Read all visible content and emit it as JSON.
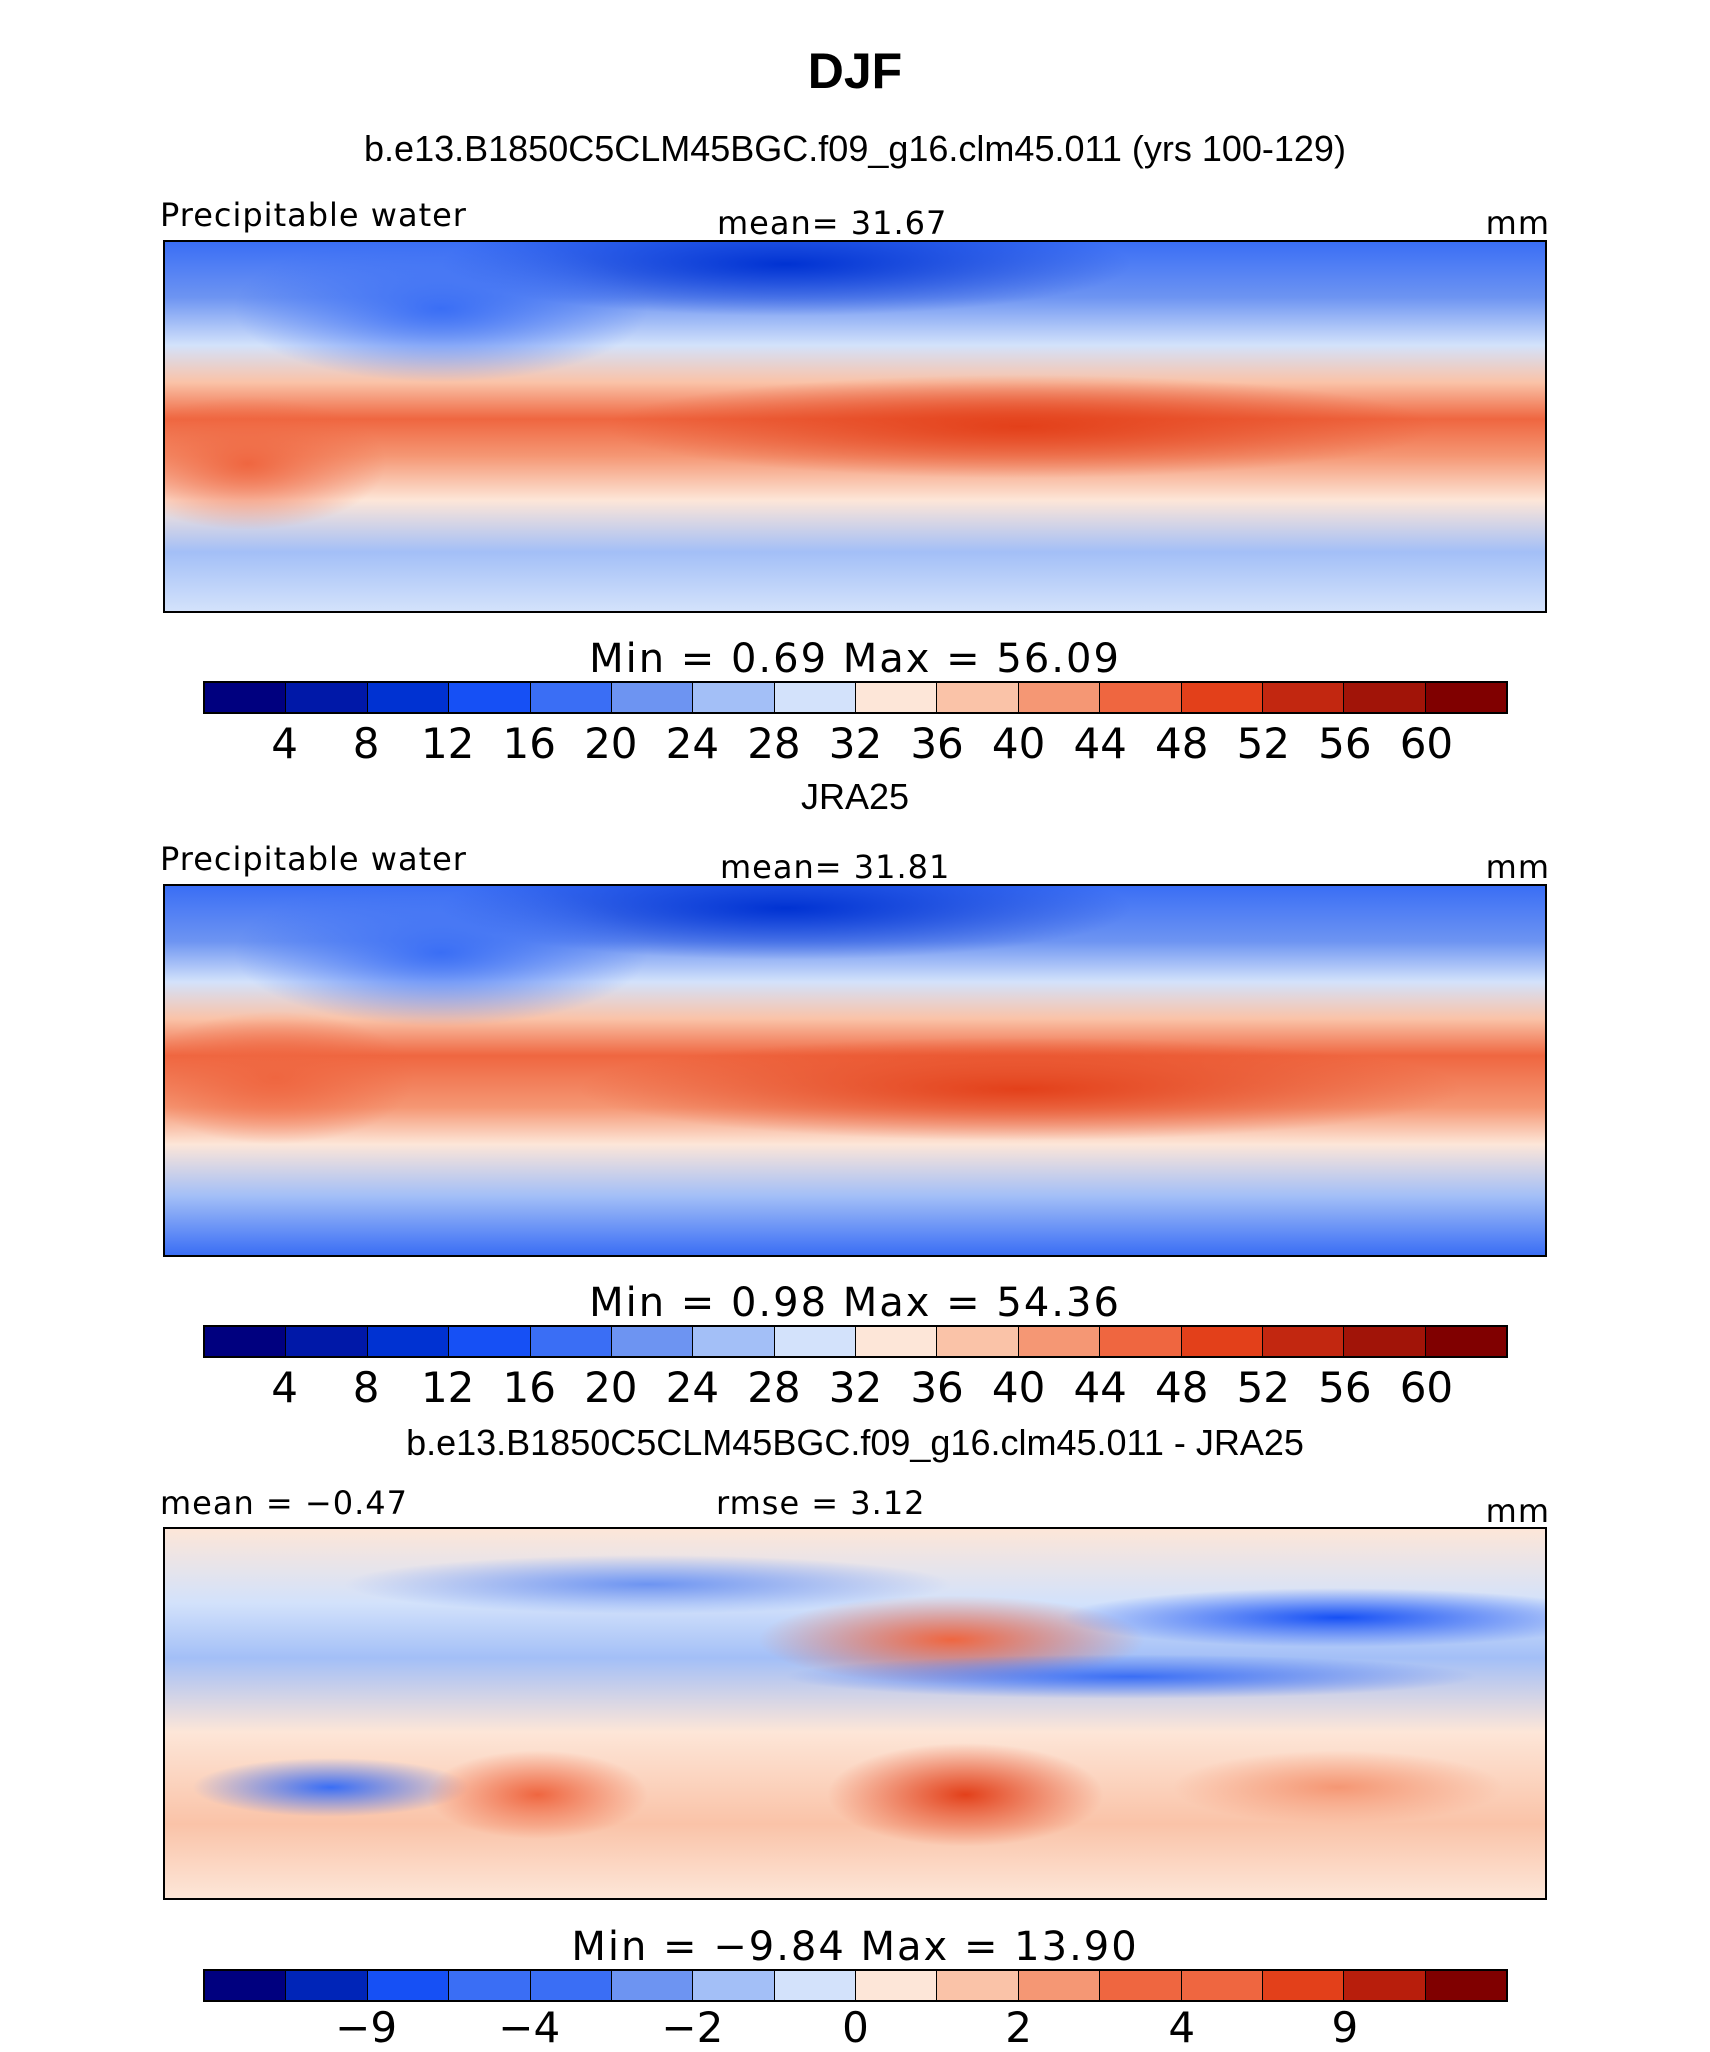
{
  "header": {
    "title": "DJF",
    "model_run": "b.e13.B1850C5CLM45BGC.f09_g16.clm45.011 (yrs 100-129)"
  },
  "panels": [
    {
      "id": "model",
      "subtitle": "",
      "left_label": "Precipitable water",
      "center_label": "mean=   31.67",
      "right_label": "mm",
      "minmax": "Min =    0.69  Max =   56.09",
      "colorbar_ticks": [
        "4",
        "8",
        "12",
        "16",
        "20",
        "24",
        "28",
        "32",
        "36",
        "40",
        "44",
        "48",
        "52",
        "56",
        "60"
      ]
    },
    {
      "id": "obs",
      "subtitle": "JRA25",
      "left_label": "Precipitable water",
      "center_label": "mean=   31.81",
      "right_label": "mm",
      "minmax": "Min =    0.98  Max =   54.36",
      "colorbar_ticks": [
        "4",
        "8",
        "12",
        "16",
        "20",
        "24",
        "28",
        "32",
        "36",
        "40",
        "44",
        "48",
        "52",
        "56",
        "60"
      ]
    },
    {
      "id": "diff",
      "subtitle": "b.e13.B1850C5CLM45BGC.f09_g16.clm45.011 - JRA25",
      "left_label": "mean =  −0.47",
      "center_label": "rmse =    3.12",
      "right_label": "mm",
      "minmax": "Min =   −9.84  Max =   13.90",
      "colorbar_ticks": [
        "−9",
        "−4",
        "−2",
        "0",
        "2",
        "4",
        "9"
      ]
    }
  ],
  "colors": {
    "abs_scale": [
      "#00007f",
      "#0018a8",
      "#0032d2",
      "#1650f5",
      "#3a6ef5",
      "#6d94f2",
      "#a3bff7",
      "#d3e2fb",
      "#fde6d8",
      "#fac3a8",
      "#f59774",
      "#ef6640",
      "#e3401a",
      "#c22710",
      "#a11408",
      "#800000"
    ],
    "diff_scale": [
      "#00007f",
      "#0025b8",
      "#1650f5",
      "#3a6ef5",
      "#6d94f2",
      "#a3bff7",
      "#d3e2fb",
      "#fde6d8",
      "#fac3a8",
      "#f59774",
      "#ef6640",
      "#e3401a",
      "#b81e0c",
      "#800000"
    ]
  }
}
